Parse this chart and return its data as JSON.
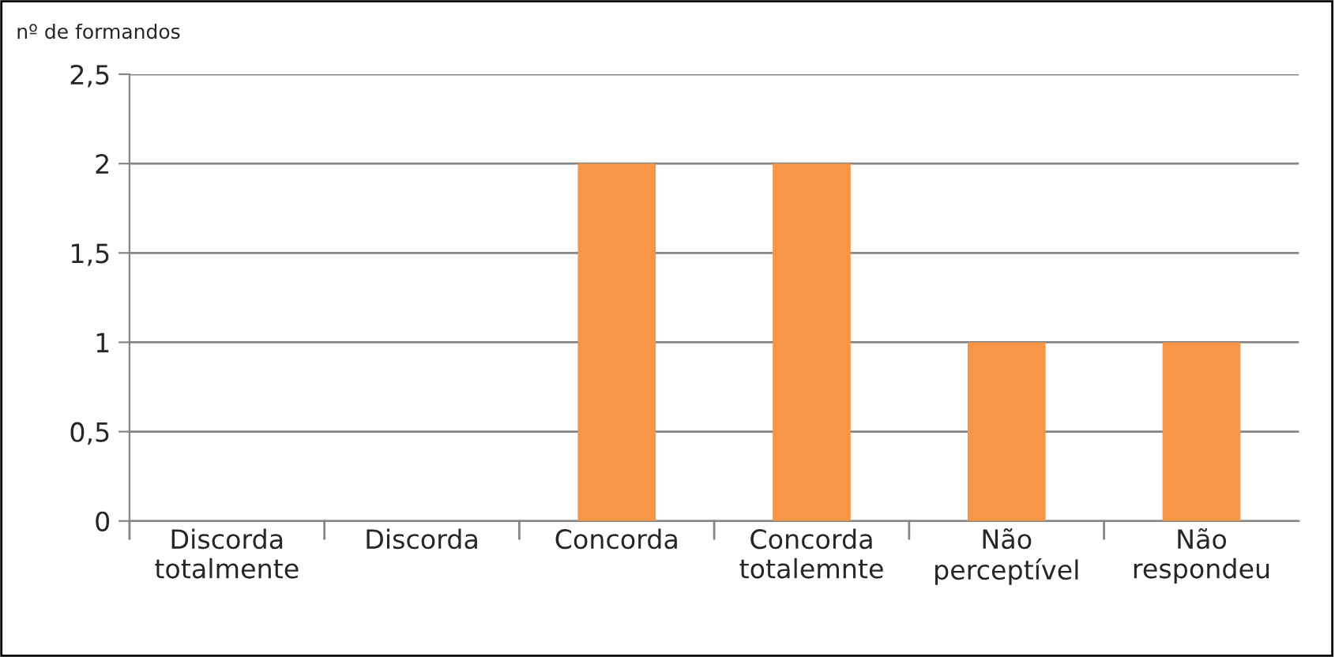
{
  "chart_data": {
    "type": "bar",
    "ylabel": "nº de formandos",
    "categories": [
      "Discorda\ntotalmente",
      "Discorda",
      "Concorda",
      "Concorda\ntotalemnte",
      "Não\nperceptível",
      "Não\nrespondeu"
    ],
    "values": [
      0,
      0,
      2,
      2,
      1,
      1
    ],
    "color": "#f79646",
    "ylim": [
      0,
      2.5
    ],
    "yticks": [
      {
        "value": 0,
        "label": "0"
      },
      {
        "value": 0.5,
        "label": "0,5"
      },
      {
        "value": 1,
        "label": "1"
      },
      {
        "value": 1.5,
        "label": "1,5"
      },
      {
        "value": 2,
        "label": "2"
      },
      {
        "value": 2.5,
        "label": "2,5"
      }
    ],
    "grid": "y",
    "legend": false
  }
}
